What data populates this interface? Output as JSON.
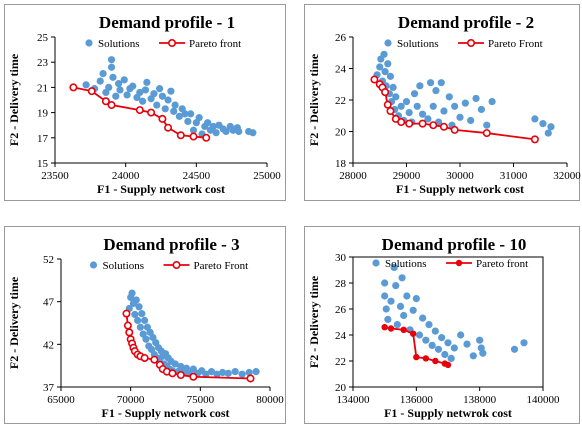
{
  "chart_data": [
    {
      "type": "scatter",
      "title": "Demand profile - 1",
      "xlabel": "F1 - Supply network cost",
      "ylabel": "F2 - Delivery time",
      "xlim": [
        23500,
        25000
      ],
      "ylim": [
        15,
        25
      ],
      "xticks": [
        23500,
        24000,
        24500,
        25000
      ],
      "yticks": [
        15,
        17,
        19,
        21,
        23,
        25
      ],
      "legend": {
        "position": "top",
        "solutions_label": "Solutions",
        "pareto_label": "Pareto front"
      },
      "colors": {
        "solutions": "#5b9bd5",
        "pareto": "#e8000b"
      },
      "series": [
        {
          "name": "Solutions",
          "points": [
            [
              23720,
              21.2
            ],
            [
              23780,
              20.9
            ],
            [
              23820,
              21.5
            ],
            [
              23840,
              22.1
            ],
            [
              23860,
              20.6
            ],
            [
              23880,
              21.0
            ],
            [
              23900,
              22.6
            ],
            [
              23900,
              23.2
            ],
            [
              23910,
              21.8
            ],
            [
              23930,
              20.3
            ],
            [
              23950,
              21.3
            ],
            [
              23960,
              20.8
            ],
            [
              23990,
              21.6
            ],
            [
              24010,
              20.4
            ],
            [
              24030,
              20.9
            ],
            [
              24050,
              21.1
            ],
            [
              24080,
              20.2
            ],
            [
              24100,
              20.6
            ],
            [
              24120,
              19.9
            ],
            [
              24140,
              20.8
            ],
            [
              24150,
              21.4
            ],
            [
              24180,
              20.1
            ],
            [
              24200,
              20.5
            ],
            [
              24220,
              19.6
            ],
            [
              24240,
              20.9
            ],
            [
              24260,
              20.3
            ],
            [
              24280,
              19.3
            ],
            [
              24300,
              20.0
            ],
            [
              24320,
              20.7
            ],
            [
              24340,
              19.1
            ],
            [
              24350,
              19.6
            ],
            [
              24380,
              18.7
            ],
            [
              24400,
              19.3
            ],
            [
              24420,
              18.9
            ],
            [
              24440,
              18.3
            ],
            [
              24460,
              18.9
            ],
            [
              24480,
              17.6
            ],
            [
              24500,
              18.2
            ],
            [
              24520,
              18.6
            ],
            [
              24540,
              17.3
            ],
            [
              24560,
              17.9
            ],
            [
              24580,
              18.2
            ],
            [
              24600,
              17.6
            ],
            [
              24620,
              17.9
            ],
            [
              24640,
              17.4
            ],
            [
              24660,
              18.0
            ],
            [
              24690,
              17.7
            ],
            [
              24710,
              17.5
            ],
            [
              24740,
              17.9
            ],
            [
              24760,
              17.6
            ],
            [
              24790,
              17.8
            ],
            [
              24800,
              17.5
            ],
            [
              24870,
              17.5
            ],
            [
              24900,
              17.4
            ]
          ]
        },
        {
          "name": "Pareto front",
          "points": [
            [
              23630,
              21.0
            ],
            [
              23760,
              20.7
            ],
            [
              23860,
              19.9
            ],
            [
              23900,
              19.6
            ],
            [
              24100,
              19.2
            ],
            [
              24180,
              19.0
            ],
            [
              24260,
              18.5
            ],
            [
              24300,
              17.8
            ],
            [
              24390,
              17.2
            ],
            [
              24480,
              17.1
            ],
            [
              24570,
              17.0
            ]
          ]
        }
      ]
    },
    {
      "type": "scatter",
      "title": "Demand profile - 2",
      "xlabel": "F1 - Supply network cost",
      "ylabel": "F2 - Delivery time",
      "xlim": [
        28000,
        32000
      ],
      "ylim": [
        18,
        26
      ],
      "xticks": [
        28000,
        29000,
        30000,
        31000,
        32000
      ],
      "yticks": [
        18,
        20,
        22,
        24,
        26
      ],
      "legend": {
        "position": "top",
        "solutions_label": "Solutions",
        "pareto_label": "Pareto Front"
      },
      "colors": {
        "solutions": "#5b9bd5",
        "pareto": "#e8000b"
      },
      "series": [
        {
          "name": "Solutions",
          "points": [
            [
              28450,
              23.6
            ],
            [
              28500,
              24.1
            ],
            [
              28520,
              24.6
            ],
            [
              28550,
              23.2
            ],
            [
              28580,
              24.9
            ],
            [
              28600,
              23.8
            ],
            [
              28620,
              22.9
            ],
            [
              28650,
              24.3
            ],
            [
              28680,
              22.4
            ],
            [
              28700,
              23.5
            ],
            [
              28720,
              21.9
            ],
            [
              28750,
              22.8
            ],
            [
              28780,
              21.4
            ],
            [
              28800,
              22.2
            ],
            [
              28850,
              21.0
            ],
            [
              28900,
              21.6
            ],
            [
              28950,
              20.7
            ],
            [
              29000,
              21.9
            ],
            [
              29050,
              21.2
            ],
            [
              29100,
              20.6
            ],
            [
              29150,
              22.4
            ],
            [
              29200,
              21.6
            ],
            [
              29250,
              22.9
            ],
            [
              29300,
              21.1
            ],
            [
              29400,
              20.8
            ],
            [
              29450,
              23.1
            ],
            [
              29500,
              21.6
            ],
            [
              29550,
              22.6
            ],
            [
              29600,
              20.6
            ],
            [
              29650,
              23.1
            ],
            [
              29700,
              21.3
            ],
            [
              29800,
              22.2
            ],
            [
              29850,
              20.4
            ],
            [
              29900,
              21.6
            ],
            [
              30000,
              20.9
            ],
            [
              30100,
              21.8
            ],
            [
              30200,
              20.7
            ],
            [
              30300,
              22.1
            ],
            [
              30400,
              21.4
            ],
            [
              30500,
              20.4
            ],
            [
              30600,
              21.9
            ],
            [
              31400,
              20.8
            ],
            [
              31550,
              20.5
            ],
            [
              31650,
              19.9
            ],
            [
              31700,
              20.3
            ]
          ]
        },
        {
          "name": "Pareto Front",
          "points": [
            [
              28400,
              23.3
            ],
            [
              28500,
              23.0
            ],
            [
              28550,
              22.8
            ],
            [
              28600,
              22.5
            ],
            [
              28650,
              21.7
            ],
            [
              28700,
              21.3
            ],
            [
              28800,
              20.8
            ],
            [
              28900,
              20.6
            ],
            [
              29050,
              20.5
            ],
            [
              29300,
              20.5
            ],
            [
              29500,
              20.4
            ],
            [
              29700,
              20.3
            ],
            [
              29900,
              20.1
            ],
            [
              30500,
              19.9
            ],
            [
              31400,
              19.5
            ]
          ]
        }
      ]
    },
    {
      "type": "scatter",
      "title": "Demand profile - 3",
      "xlabel": "F1 - Supply network cost",
      "ylabel": "F2 - Delivery time",
      "xlim": [
        65000,
        80000
      ],
      "ylim": [
        37,
        52
      ],
      "xticks": [
        65000,
        70000,
        75000,
        80000
      ],
      "yticks": [
        37,
        42,
        47,
        52
      ],
      "legend": {
        "position": "top",
        "solutions_label": "Solutions",
        "pareto_label": "Pareto Front"
      },
      "colors": {
        "solutions": "#5b9bd5",
        "pareto": "#e8000b"
      },
      "series": [
        {
          "name": "Solutions",
          "points": [
            [
              69900,
              46.2
            ],
            [
              70000,
              47.5
            ],
            [
              70100,
              48.0
            ],
            [
              70200,
              46.8
            ],
            [
              70300,
              45.5
            ],
            [
              70400,
              47.2
            ],
            [
              70500,
              44.8
            ],
            [
              70600,
              46.4
            ],
            [
              70700,
              44.0
            ],
            [
              70800,
              45.6
            ],
            [
              70900,
              43.2
            ],
            [
              71000,
              44.8
            ],
            [
              71100,
              42.6
            ],
            [
              71200,
              44.0
            ],
            [
              71300,
              41.8
            ],
            [
              71400,
              43.4
            ],
            [
              71500,
              41.4
            ],
            [
              71600,
              42.8
            ],
            [
              71700,
              40.8
            ],
            [
              71800,
              42.2
            ],
            [
              71900,
              40.4
            ],
            [
              72000,
              41.6
            ],
            [
              72100,
              39.9
            ],
            [
              72200,
              41.2
            ],
            [
              72300,
              40.6
            ],
            [
              72400,
              39.7
            ],
            [
              72500,
              40.9
            ],
            [
              72600,
              39.4
            ],
            [
              72700,
              40.4
            ],
            [
              72800,
              39.1
            ],
            [
              72900,
              40.0
            ],
            [
              73000,
              38.9
            ],
            [
              73200,
              39.7
            ],
            [
              73400,
              38.8
            ],
            [
              73600,
              39.4
            ],
            [
              73800,
              38.7
            ],
            [
              74000,
              39.2
            ],
            [
              74200,
              38.6
            ],
            [
              74500,
              39.1
            ],
            [
              74800,
              38.6
            ],
            [
              75100,
              38.9
            ],
            [
              75400,
              38.5
            ],
            [
              75800,
              38.8
            ],
            [
              76200,
              38.5
            ],
            [
              76600,
              38.7
            ],
            [
              77000,
              38.6
            ],
            [
              77500,
              38.8
            ],
            [
              78000,
              38.5
            ],
            [
              78500,
              38.7
            ],
            [
              79000,
              38.8
            ]
          ]
        },
        {
          "name": "Pareto Front",
          "points": [
            [
              69700,
              45.6
            ],
            [
              69800,
              44.2
            ],
            [
              69900,
              43.4
            ],
            [
              70000,
              42.6
            ],
            [
              70100,
              42.1
            ],
            [
              70200,
              41.6
            ],
            [
              70300,
              41.2
            ],
            [
              70500,
              40.8
            ],
            [
              70700,
              40.6
            ],
            [
              71000,
              40.4
            ],
            [
              71700,
              40.2
            ],
            [
              72100,
              39.6
            ],
            [
              72300,
              39.1
            ],
            [
              72600,
              38.8
            ],
            [
              73000,
              38.6
            ],
            [
              73600,
              38.4
            ],
            [
              74500,
              38.2
            ],
            [
              78600,
              38.0
            ]
          ]
        }
      ]
    },
    {
      "type": "scatter",
      "title": "Demand profile - 10",
      "xlabel": "F1 - Supply netwrok cost",
      "ylabel": "F2 - Delivery time",
      "xlim": [
        134000,
        140000
      ],
      "ylim": [
        20,
        30
      ],
      "xticks": [
        134000,
        136000,
        138000,
        140000
      ],
      "yticks": [
        20,
        22,
        24,
        26,
        28,
        30
      ],
      "legend": {
        "position": "top",
        "solutions_label": "Solutions",
        "pareto_label": "Pareto front"
      },
      "colors": {
        "solutions": "#5b9bd5",
        "pareto": "#e8000b"
      },
      "series": [
        {
          "name": "Solutions",
          "points": [
            [
              135000,
              28.0
            ],
            [
              135000,
              27.0
            ],
            [
              135050,
              26.0
            ],
            [
              135100,
              25.2
            ],
            [
              135200,
              26.6
            ],
            [
              135300,
              29.2
            ],
            [
              135350,
              27.8
            ],
            [
              135400,
              24.8
            ],
            [
              135500,
              26.2
            ],
            [
              135550,
              28.4
            ],
            [
              135600,
              25.5
            ],
            [
              135700,
              27.0
            ],
            [
              135800,
              24.4
            ],
            [
              135900,
              25.9
            ],
            [
              136000,
              26.8
            ],
            [
              136100,
              24.0
            ],
            [
              136200,
              25.3
            ],
            [
              136300,
              23.6
            ],
            [
              136400,
              24.8
            ],
            [
              136500,
              23.2
            ],
            [
              136600,
              24.3
            ],
            [
              136700,
              22.9
            ],
            [
              136800,
              23.8
            ],
            [
              136900,
              22.5
            ],
            [
              137000,
              23.4
            ],
            [
              137100,
              22.2
            ],
            [
              137200,
              23.0
            ],
            [
              137400,
              24.0
            ],
            [
              137600,
              23.3
            ],
            [
              137800,
              22.4
            ],
            [
              138000,
              23.6
            ],
            [
              138050,
              23.0
            ],
            [
              138100,
              22.6
            ],
            [
              139100,
              22.9
            ],
            [
              139400,
              23.4
            ]
          ]
        },
        {
          "name": "Pareto front",
          "points": [
            [
              135000,
              24.6
            ],
            [
              135200,
              24.5
            ],
            [
              135600,
              24.4
            ],
            [
              135900,
              24.1
            ],
            [
              136000,
              22.3
            ],
            [
              136300,
              22.2
            ],
            [
              136600,
              22.0
            ],
            [
              136900,
              21.8
            ],
            [
              137000,
              21.7
            ]
          ]
        }
      ]
    }
  ]
}
